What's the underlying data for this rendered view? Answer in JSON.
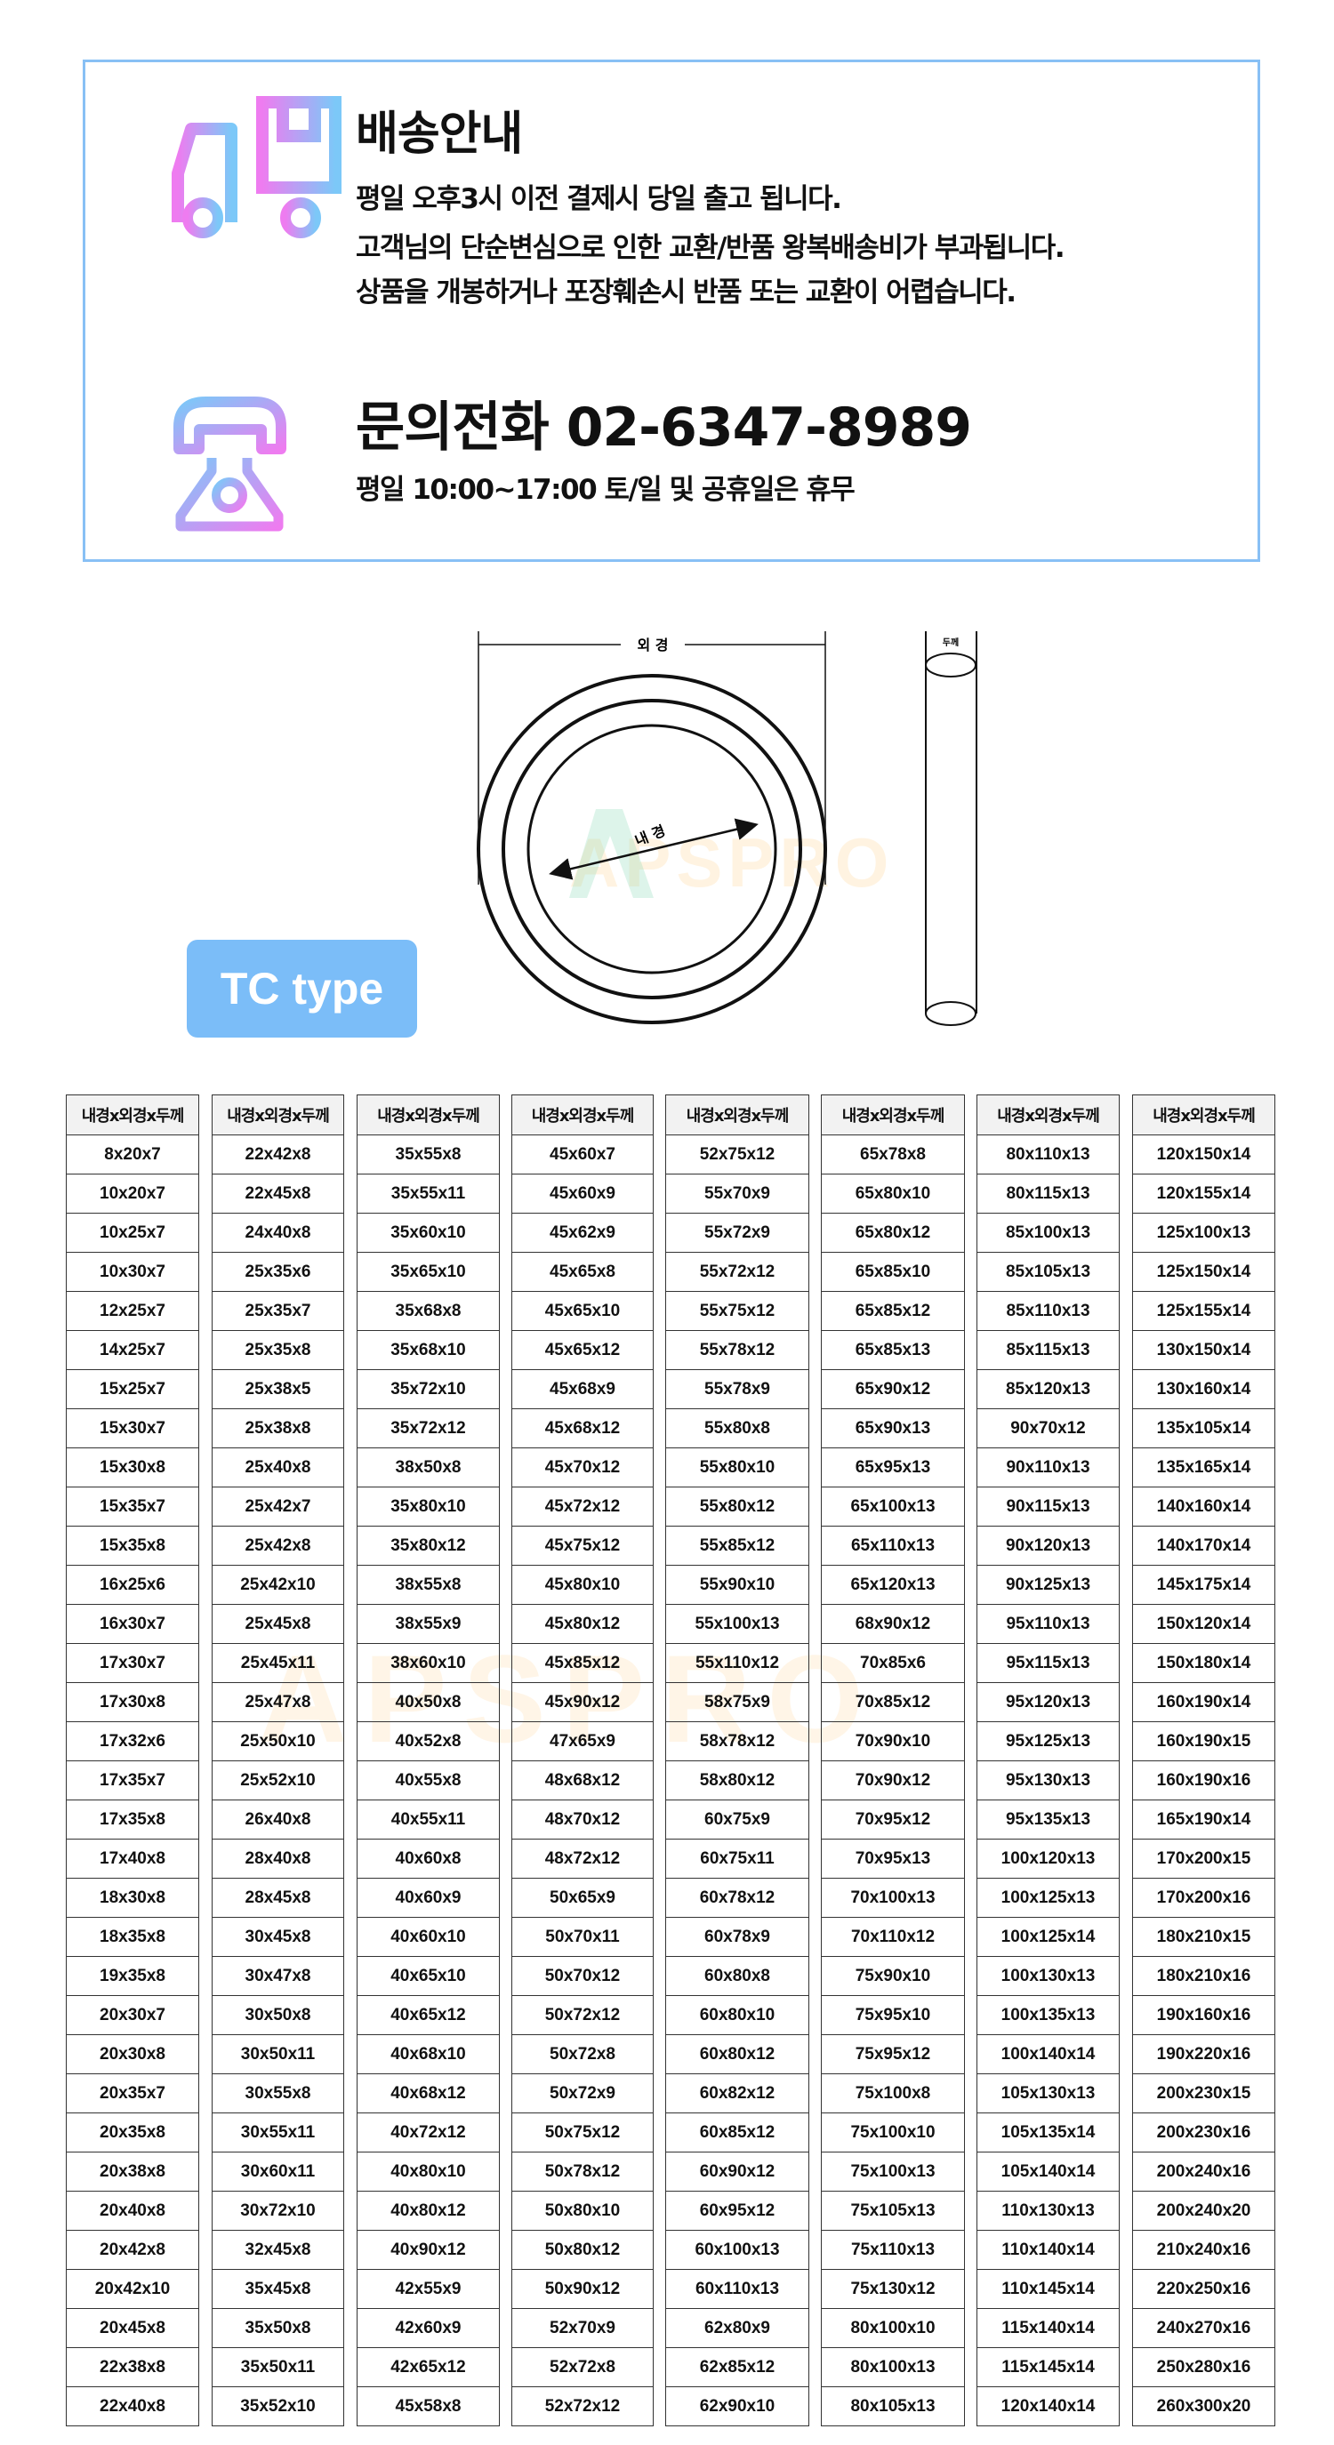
{
  "shipping": {
    "title": "배송안내",
    "lines": [
      "평일 오후3시 이전 결제시 당일 출고 됩니다.",
      "고객님의 단순변심으로 인한 교환/반품 왕복배송비가 부과됩니다.",
      "상품을 개봉하거나 포장훼손시 반품 또는 교환이 어렵습니다."
    ],
    "icon": "truck-icon"
  },
  "contact": {
    "title": "문의전화  02-6347-8989",
    "hours": "평일 10:00~17:00 토/일 및 공휴일은 휴무",
    "icon": "telephone-icon"
  },
  "diagram": {
    "outer_label": "외 경",
    "inner_label": "내 경",
    "thickness_label": "두께",
    "type_badge": "TC type",
    "watermark": "APSPRO"
  },
  "colors": {
    "border": "#88c0f5",
    "badge": "#7bbdf8",
    "icon_gradient_start": "#ee7cf0",
    "icon_gradient_end": "#7cc8f8",
    "header_bg": "#f2f2f2"
  },
  "table": {
    "header": "내경x외경x두께",
    "columns": [
      [
        "8x20x7",
        "10x20x7",
        "10x25x7",
        "10x30x7",
        "12x25x7",
        "14x25x7",
        "15x25x7",
        "15x30x7",
        "15x30x8",
        "15x35x7",
        "15x35x8",
        "16x25x6",
        "16x30x7",
        "17x30x7",
        "17x30x8",
        "17x32x6",
        "17x35x7",
        "17x35x8",
        "17x40x8",
        "18x30x8",
        "18x35x8",
        "19x35x8",
        "20x30x7",
        "20x30x8",
        "20x35x7",
        "20x35x8",
        "20x38x8",
        "20x40x8",
        "20x42x8",
        "20x42x10",
        "20x45x8",
        "22x38x8",
        "22x40x8"
      ],
      [
        "22x42x8",
        "22x45x8",
        "24x40x8",
        "25x35x6",
        "25x35x7",
        "25x35x8",
        "25x38x5",
        "25x38x8",
        "25x40x8",
        "25x42x7",
        "25x42x8",
        "25x42x10",
        "25x45x8",
        "25x45x11",
        "25x47x8",
        "25x50x10",
        "25x52x10",
        "26x40x8",
        "28x40x8",
        "28x45x8",
        "30x45x8",
        "30x47x8",
        "30x50x8",
        "30x50x11",
        "30x55x8",
        "30x55x11",
        "30x60x11",
        "30x72x10",
        "32x45x8",
        "35x45x8",
        "35x50x8",
        "35x50x11",
        "35x52x10"
      ],
      [
        "35x55x8",
        "35x55x11",
        "35x60x10",
        "35x65x10",
        "35x68x8",
        "35x68x10",
        "35x72x10",
        "35x72x12",
        "38x50x8",
        "35x80x10",
        "35x80x12",
        "38x55x8",
        "38x55x9",
        "38x60x10",
        "40x50x8",
        "40x52x8",
        "40x55x8",
        "40x55x11",
        "40x60x8",
        "40x60x9",
        "40x60x10",
        "40x65x10",
        "40x65x12",
        "40x68x10",
        "40x68x12",
        "40x72x12",
        "40x80x10",
        "40x80x12",
        "40x90x12",
        "42x55x9",
        "42x60x9",
        "42x65x12",
        "45x58x8"
      ],
      [
        "45x60x7",
        "45x60x9",
        "45x62x9",
        "45x65x8",
        "45x65x10",
        "45x65x12",
        "45x68x9",
        "45x68x12",
        "45x70x12",
        "45x72x12",
        "45x75x12",
        "45x80x10",
        "45x80x12",
        "45x85x12",
        "45x90x12",
        "47x65x9",
        "48x68x12",
        "48x70x12",
        "48x72x12",
        "50x65x9",
        "50x70x11",
        "50x70x12",
        "50x72x12",
        "50x72x8",
        "50x72x9",
        "50x75x12",
        "50x78x12",
        "50x80x10",
        "50x80x12",
        "50x90x12",
        "52x70x9",
        "52x72x8",
        "52x72x12"
      ],
      [
        "52x75x12",
        "55x70x9",
        "55x72x9",
        "55x72x12",
        "55x75x12",
        "55x78x12",
        "55x78x9",
        "55x80x8",
        "55x80x10",
        "55x80x12",
        "55x85x12",
        "55x90x10",
        "55x100x13",
        "55x110x12",
        "58x75x9",
        "58x78x12",
        "58x80x12",
        "60x75x9",
        "60x75x11",
        "60x78x12",
        "60x78x9",
        "60x80x8",
        "60x80x10",
        "60x80x12",
        "60x82x12",
        "60x85x12",
        "60x90x12",
        "60x95x12",
        "60x100x13",
        "60x110x13",
        "62x80x9",
        "62x85x12",
        "62x90x10"
      ],
      [
        "65x78x8",
        "65x80x10",
        "65x80x12",
        "65x85x10",
        "65x85x12",
        "65x85x13",
        "65x90x12",
        "65x90x13",
        "65x95x13",
        "65x100x13",
        "65x110x13",
        "65x120x13",
        "68x90x12",
        "70x85x6",
        "70x85x12",
        "70x90x10",
        "70x90x12",
        "70x95x12",
        "70x95x13",
        "70x100x13",
        "70x110x12",
        "75x90x10",
        "75x95x10",
        "75x95x12",
        "75x100x8",
        "75x100x10",
        "75x100x13",
        "75x105x13",
        "75x110x13",
        "75x130x12",
        "80x100x10",
        "80x100x13",
        "80x105x13"
      ],
      [
        "80x110x13",
        "80x115x13",
        "85x100x13",
        "85x105x13",
        "85x110x13",
        "85x115x13",
        "85x120x13",
        "90x70x12",
        "90x110x13",
        "90x115x13",
        "90x120x13",
        "90x125x13",
        "95x110x13",
        "95x115x13",
        "95x120x13",
        "95x125x13",
        "95x130x13",
        "95x135x13",
        "100x120x13",
        "100x125x13",
        "100x125x14",
        "100x130x13",
        "100x135x13",
        "100x140x14",
        "105x130x13",
        "105x135x14",
        "105x140x14",
        "110x130x13",
        "110x140x14",
        "110x145x14",
        "115x140x14",
        "115x145x14",
        "120x140x14"
      ],
      [
        "120x150x14",
        "120x155x14",
        "125x100x13",
        "125x150x14",
        "125x155x14",
        "130x150x14",
        "130x160x14",
        "135x105x14",
        "135x165x14",
        "140x160x14",
        "140x170x14",
        "145x175x14",
        "150x120x14",
        "150x180x14",
        "160x190x14",
        "160x190x15",
        "160x190x16",
        "165x190x14",
        "170x200x15",
        "170x200x16",
        "180x210x15",
        "180x210x16",
        "190x160x16",
        "190x220x16",
        "200x230x15",
        "200x230x16",
        "200x240x16",
        "200x240x20",
        "210x240x16",
        "220x250x16",
        "240x270x16",
        "250x280x16",
        "260x300x20"
      ]
    ]
  }
}
